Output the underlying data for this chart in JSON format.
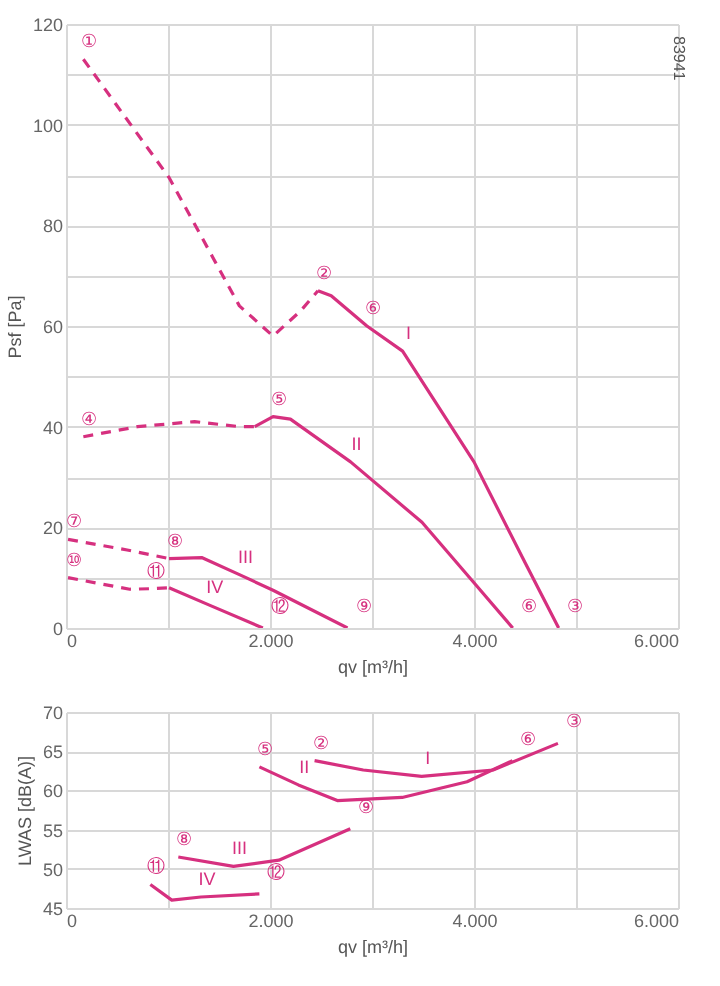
{
  "chart_data": [
    {
      "type": "line",
      "ylabel": "Psf [Pa]",
      "xlabel": "qv [m³/h]",
      "xlim": [
        0,
        6000
      ],
      "ylim": [
        0,
        120
      ],
      "xticks": [
        0,
        {
          "value": 1000,
          "label": null
        },
        {
          "value": 2000,
          "label": "2.000"
        },
        {
          "value": 3000,
          "label": null
        },
        {
          "value": 4000,
          "label": "4.000"
        },
        {
          "value": 5000,
          "label": null
        },
        {
          "value": 6000,
          "label": "6.000"
        }
      ],
      "yticks": [
        0,
        {
          "value": 10,
          "label": null
        },
        20,
        {
          "value": 30,
          "label": null
        },
        40,
        {
          "value": 50,
          "label": null
        },
        60,
        {
          "value": 70,
          "label": null
        },
        80,
        {
          "value": 90,
          "label": null
        },
        100,
        {
          "value": 110,
          "label": null
        },
        120
      ],
      "grid": true,
      "series": [
        {
          "color": "#d6307f",
          "line_style": "dashed",
          "x": [
            170,
            1010,
            1700,
            2030,
            2300,
            2470
          ],
          "values": [
            113,
            89.5,
            64,
            58,
            63,
            67
          ]
        },
        {
          "color": "#d6307f",
          "line_style": "solid",
          "x": [
            2470,
            2600,
            2950,
            3300,
            4000,
            4500,
            4830
          ],
          "values": [
            67,
            66,
            60,
            55,
            33,
            13,
            0
          ]
        },
        {
          "color": "#d6307f",
          "line_style": "dashed",
          "x": [
            170,
            700,
            1260,
            1700,
            1850
          ],
          "values": [
            38,
            40,
            41,
            40,
            40
          ]
        },
        {
          "color": "#d6307f",
          "line_style": "solid",
          "x": [
            1850,
            2030,
            2200,
            2790,
            3490,
            4000,
            4380
          ],
          "values": [
            40,
            42,
            41.5,
            33,
            21,
            9,
            0
          ]
        },
        {
          "color": "#d6307f",
          "line_style": "dashed",
          "x": [
            20,
            600,
            1010
          ],
          "values": [
            17.6,
            15.5,
            13.8
          ]
        },
        {
          "color": "#d6307f",
          "line_style": "solid",
          "x": [
            1010,
            1330,
            1700,
            2030,
            2760
          ],
          "values": [
            13.8,
            14,
            10.6,
            7.5,
            0
          ]
        },
        {
          "color": "#d6307f",
          "line_style": "dashed",
          "x": [
            20,
            625,
            820,
            1010
          ],
          "values": [
            10,
            7.7,
            7.8,
            8
          ]
        },
        {
          "color": "#d6307f",
          "line_style": "solid",
          "x": [
            1010,
            1400,
            1930
          ],
          "values": [
            8,
            4.6,
            0
          ]
        }
      ],
      "annotations": [
        "83941",
        {
          "text": "①",
          "x": 170,
          "y": 113
        },
        {
          "text": "②",
          "x": 2470,
          "y": 67
        },
        {
          "text": "⑥",
          "x": 2950,
          "y": 60
        },
        {
          "text": "④",
          "x": 170,
          "y": 38
        },
        {
          "text": "⑤",
          "x": 2030,
          "y": 42
        },
        {
          "text": "⑦",
          "x": 20,
          "y": 17.6
        },
        {
          "text": "⑧",
          "x": 1010,
          "y": 13.8
        },
        {
          "text": "⑩",
          "x": 20,
          "y": 10
        },
        {
          "text": "⑪",
          "x": 820,
          "y": 7.8
        },
        {
          "text": "⑫",
          "x": 1930,
          "y": 0
        },
        {
          "text": "⑨",
          "x": 2760,
          "y": 0
        },
        {
          "text": "⑥",
          "x": 4380,
          "y": 0
        },
        {
          "text": "③",
          "x": 4830,
          "y": 0
        },
        {
          "text": "I",
          "x": 3300,
          "y": 55
        },
        {
          "text": "II",
          "x": 2790,
          "y": 33
        },
        {
          "text": "III",
          "x": 1700,
          "y": 10.6
        },
        {
          "text": "IV",
          "x": 1400,
          "y": 4.6
        }
      ]
    },
    {
      "type": "line",
      "ylabel": "LWAS [dB(A)]",
      "xlabel": "qv [m³/h]",
      "xlim": [
        0,
        6000
      ],
      "ylim": [
        45,
        70
      ],
      "xticks": [
        0,
        {
          "value": 1000,
          "label": null
        },
        {
          "value": 2000,
          "label": "2.000"
        },
        {
          "value": 3000,
          "label": null
        },
        {
          "value": 4000,
          "label": "4.000"
        },
        {
          "value": 5000,
          "label": null
        },
        {
          "value": 6000,
          "label": "6.000"
        }
      ],
      "yticks": [
        45,
        50,
        55,
        60,
        65,
        70
      ],
      "grid": true,
      "series": [
        {
          "color": "#d6307f",
          "line_style": "solid",
          "x": [
            2437,
            2914,
            3487,
            4187,
            4823
          ],
          "values": [
            63.8,
            62.6,
            61.8,
            62.6,
            66
          ]
        },
        {
          "color": "#d6307f",
          "line_style": "solid",
          "x": [
            1896,
            2278,
            2660,
            3296,
            3932,
            4377
          ],
          "values": [
            63,
            60.7,
            58.7,
            59.1,
            61.1,
            63.8
          ]
        },
        {
          "color": "#d6307f",
          "line_style": "solid",
          "x": [
            1101,
            1642,
            2087,
            2787
          ],
          "values": [
            51.5,
            50.3,
            51.1,
            55.1
          ]
        },
        {
          "color": "#d6307f",
          "line_style": "solid",
          "x": [
            827,
            1037,
            1323,
            1896
          ],
          "values": [
            48,
            46,
            46.4,
            46.8
          ]
        }
      ],
      "annotations": [
        {
          "text": "⑤",
          "x": 1896,
          "y": 63
        },
        {
          "text": "②",
          "x": 2437,
          "y": 63.8
        },
        {
          "text": "⑥",
          "x": 4377,
          "y": 63.8
        },
        {
          "text": "③",
          "x": 4823,
          "y": 66
        },
        {
          "text": "⑨",
          "x": 2787,
          "y": 55.1
        },
        {
          "text": "⑧",
          "x": 1101,
          "y": 51.5
        },
        {
          "text": "⑪",
          "x": 827,
          "y": 48
        },
        {
          "text": "⑫",
          "x": 1896,
          "y": 46.8
        },
        {
          "text": "I",
          "x": 3487,
          "y": 61.8
        },
        {
          "text": "II",
          "x": 2278,
          "y": 60.7
        },
        {
          "text": "III",
          "x": 1642,
          "y": 50.3
        },
        {
          "text": "IV",
          "x": 1323,
          "y": 46.4
        }
      ]
    }
  ]
}
